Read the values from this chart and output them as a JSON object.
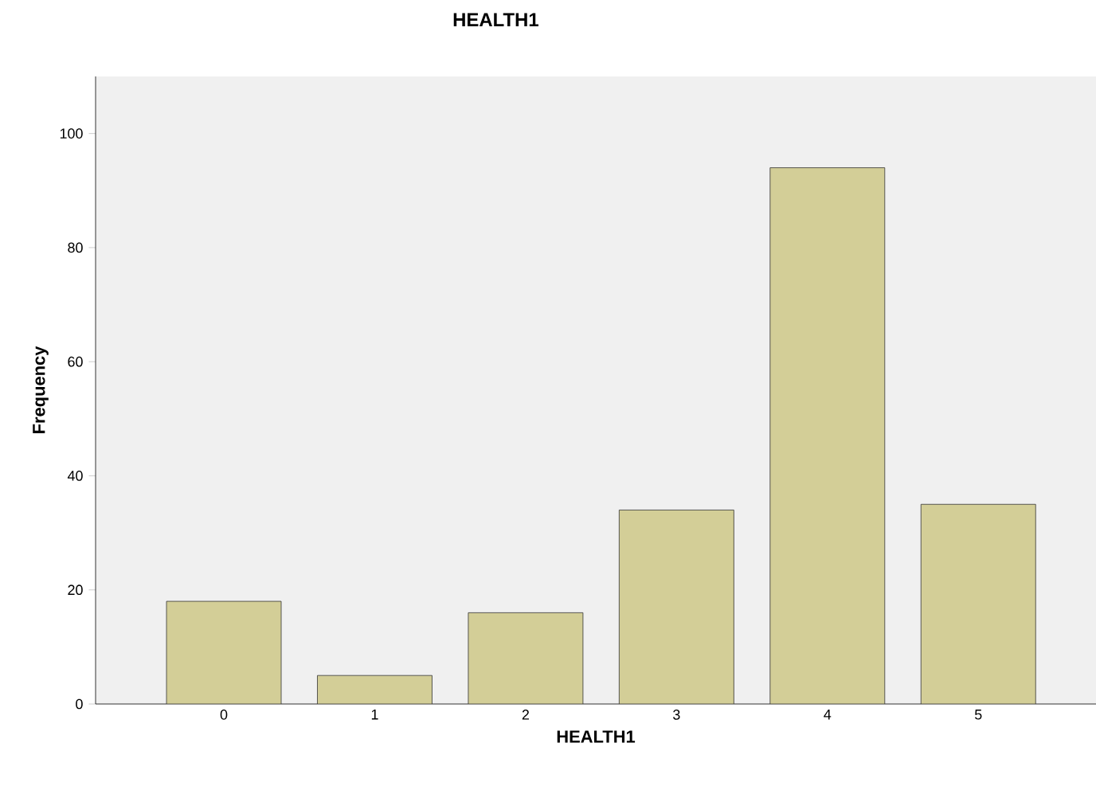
{
  "chart_data": {
    "type": "bar",
    "title": "HEALTH1",
    "xlabel": "HEALTH1",
    "ylabel": "Frequency",
    "categories": [
      "0",
      "1",
      "2",
      "3",
      "4",
      "5"
    ],
    "values": [
      18,
      5,
      16,
      34,
      94,
      35
    ],
    "color": "#d3ce97",
    "ylim": [
      0,
      110
    ],
    "yticks": [
      0,
      20,
      40,
      60,
      80,
      100
    ],
    "grid": false
  }
}
